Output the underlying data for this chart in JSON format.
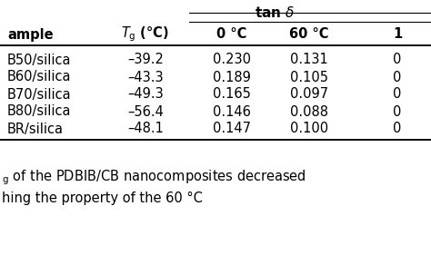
{
  "rows": [
    [
      "B50/silica",
      "–39.2",
      "0.230",
      "0.131",
      "0"
    ],
    [
      "B60/silica",
      "–43.3",
      "0.189",
      "0.105",
      "0"
    ],
    [
      "B70/silica",
      "–49.3",
      "0.165",
      "0.097",
      "0"
    ],
    [
      "B80/silica",
      "–56.4",
      "0.146",
      "0.088",
      "0"
    ],
    [
      "BR/silica",
      "–48.1",
      "0.147",
      "0.100",
      "0"
    ]
  ],
  "footer1": "g of the PDBIB/CB nanocomposites decreased",
  "footer2": "hing the property of the 60 °C",
  "bg_color": "#ffffff",
  "text_color": "#000000"
}
